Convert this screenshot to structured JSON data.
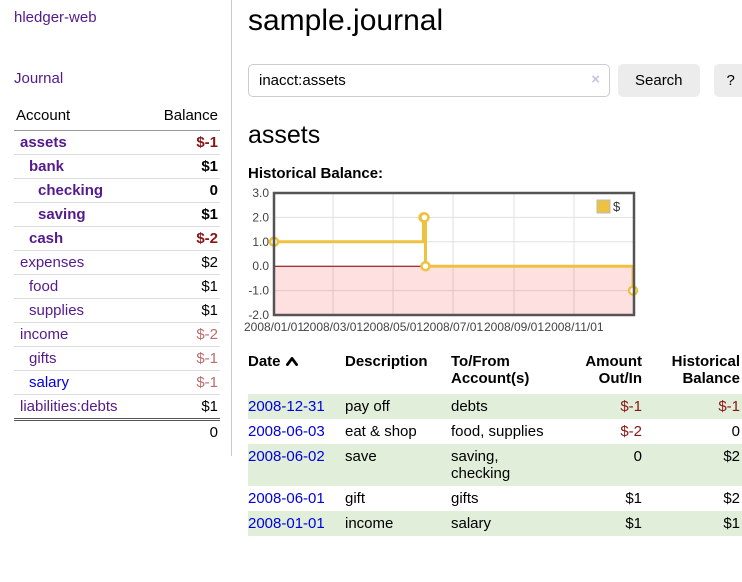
{
  "sidebar": {
    "brand": "hledger-web",
    "nav_journal": "Journal",
    "accounts_table": {
      "col_account": "Account",
      "col_balance": "Balance",
      "rows": [
        {
          "name": "assets",
          "balance": "$-1",
          "level": 0,
          "bold": true,
          "balance_color": "neg-dark"
        },
        {
          "name": "bank",
          "balance": "$1",
          "level": 1,
          "bold": true,
          "balance_color": "normal"
        },
        {
          "name": "checking",
          "balance": "0",
          "level": 2,
          "bold": true,
          "balance_color": "normal"
        },
        {
          "name": "saving",
          "balance": "$1",
          "level": 2,
          "bold": true,
          "balance_color": "normal"
        },
        {
          "name": "cash",
          "balance": "$-2",
          "level": 1,
          "bold": true,
          "balance_color": "neg-dark"
        },
        {
          "name": "expenses",
          "balance": "$2",
          "level": 0,
          "bold": false,
          "balance_color": "normal"
        },
        {
          "name": "food",
          "balance": "$1",
          "level": 1,
          "bold": false,
          "balance_color": "normal"
        },
        {
          "name": "supplies",
          "balance": "$1",
          "level": 1,
          "bold": false,
          "balance_color": "normal"
        },
        {
          "name": "income",
          "balance": "$-2",
          "level": 0,
          "bold": false,
          "balance_color": "neg-light"
        },
        {
          "name": "gifts",
          "balance": "$-1",
          "level": 1,
          "bold": false,
          "balance_color": "neg-light"
        },
        {
          "name": "salary",
          "balance": "$-1",
          "level": 1,
          "bold": false,
          "balance_color": "neg-light",
          "link_color": "blue"
        },
        {
          "name": "liabilities:debts",
          "balance": "$1",
          "level": 0,
          "bold": false,
          "balance_color": "normal"
        }
      ],
      "total": "0"
    }
  },
  "main": {
    "title": "sample.journal",
    "search": {
      "value": "inacct:assets",
      "clear_icon": "×",
      "button": "Search",
      "help": "?"
    },
    "account_heading": "assets",
    "chart_title": "Historical Balance:"
  },
  "chart_data": {
    "type": "line",
    "step": true,
    "title": "Historical Balance",
    "x": [
      "2008-01-01",
      "2008-06-01",
      "2008-06-02",
      "2008-06-03",
      "2008-12-31"
    ],
    "values": [
      1,
      2,
      2,
      0,
      -1
    ],
    "x_range": [
      "2008-01-01",
      "2009-01-01"
    ],
    "ylim": [
      -2,
      3
    ],
    "y_ticks": [
      3,
      2,
      1,
      0,
      -1,
      -2
    ],
    "y_tick_labels": [
      "3.0",
      "2.0",
      "1.0",
      "0.0",
      "-1.0",
      "-2.0"
    ],
    "x_ticks": [
      "2008-01-01",
      "2008-03-01",
      "2008-05-01",
      "2008-07-01",
      "2008-09-01",
      "2008-11-01"
    ],
    "x_tick_labels": [
      "2008/01/01",
      "2008/03/01",
      "2008/05/01",
      "2008/07/01",
      "2008/09/01",
      "2008/11/01"
    ],
    "legend": [
      {
        "label": "$",
        "color": "#edc240"
      }
    ],
    "legend_position": "top-right",
    "grid": true,
    "series_color": "#edc240",
    "zero_line_color": "#8b0000",
    "negative_region_color": "rgba(255,0,0,0.12)",
    "border_color": "#545454",
    "grid_color": "#e0e0e0"
  },
  "register": {
    "columns": [
      "Date",
      "Description",
      "To/From Account(s)",
      "Amount Out/In",
      "Historical Balance"
    ],
    "sort": {
      "column": "Date",
      "direction": "ascending"
    },
    "rows": [
      {
        "date": "2008-12-31",
        "description": "pay off",
        "accounts": "debts",
        "amount": "$-1",
        "balance": "$-1"
      },
      {
        "date": "2008-06-03",
        "description": "eat & shop",
        "accounts": "food, supplies",
        "amount": "$-2",
        "balance": "0"
      },
      {
        "date": "2008-06-02",
        "description": "save",
        "accounts": "saving, checking",
        "amount": "0",
        "balance": "$2"
      },
      {
        "date": "2008-06-01",
        "description": "gift",
        "accounts": "gifts",
        "amount": "$1",
        "balance": "$2"
      },
      {
        "date": "2008-01-01",
        "description": "income",
        "accounts": "salary",
        "amount": "$1",
        "balance": "$1"
      }
    ]
  }
}
